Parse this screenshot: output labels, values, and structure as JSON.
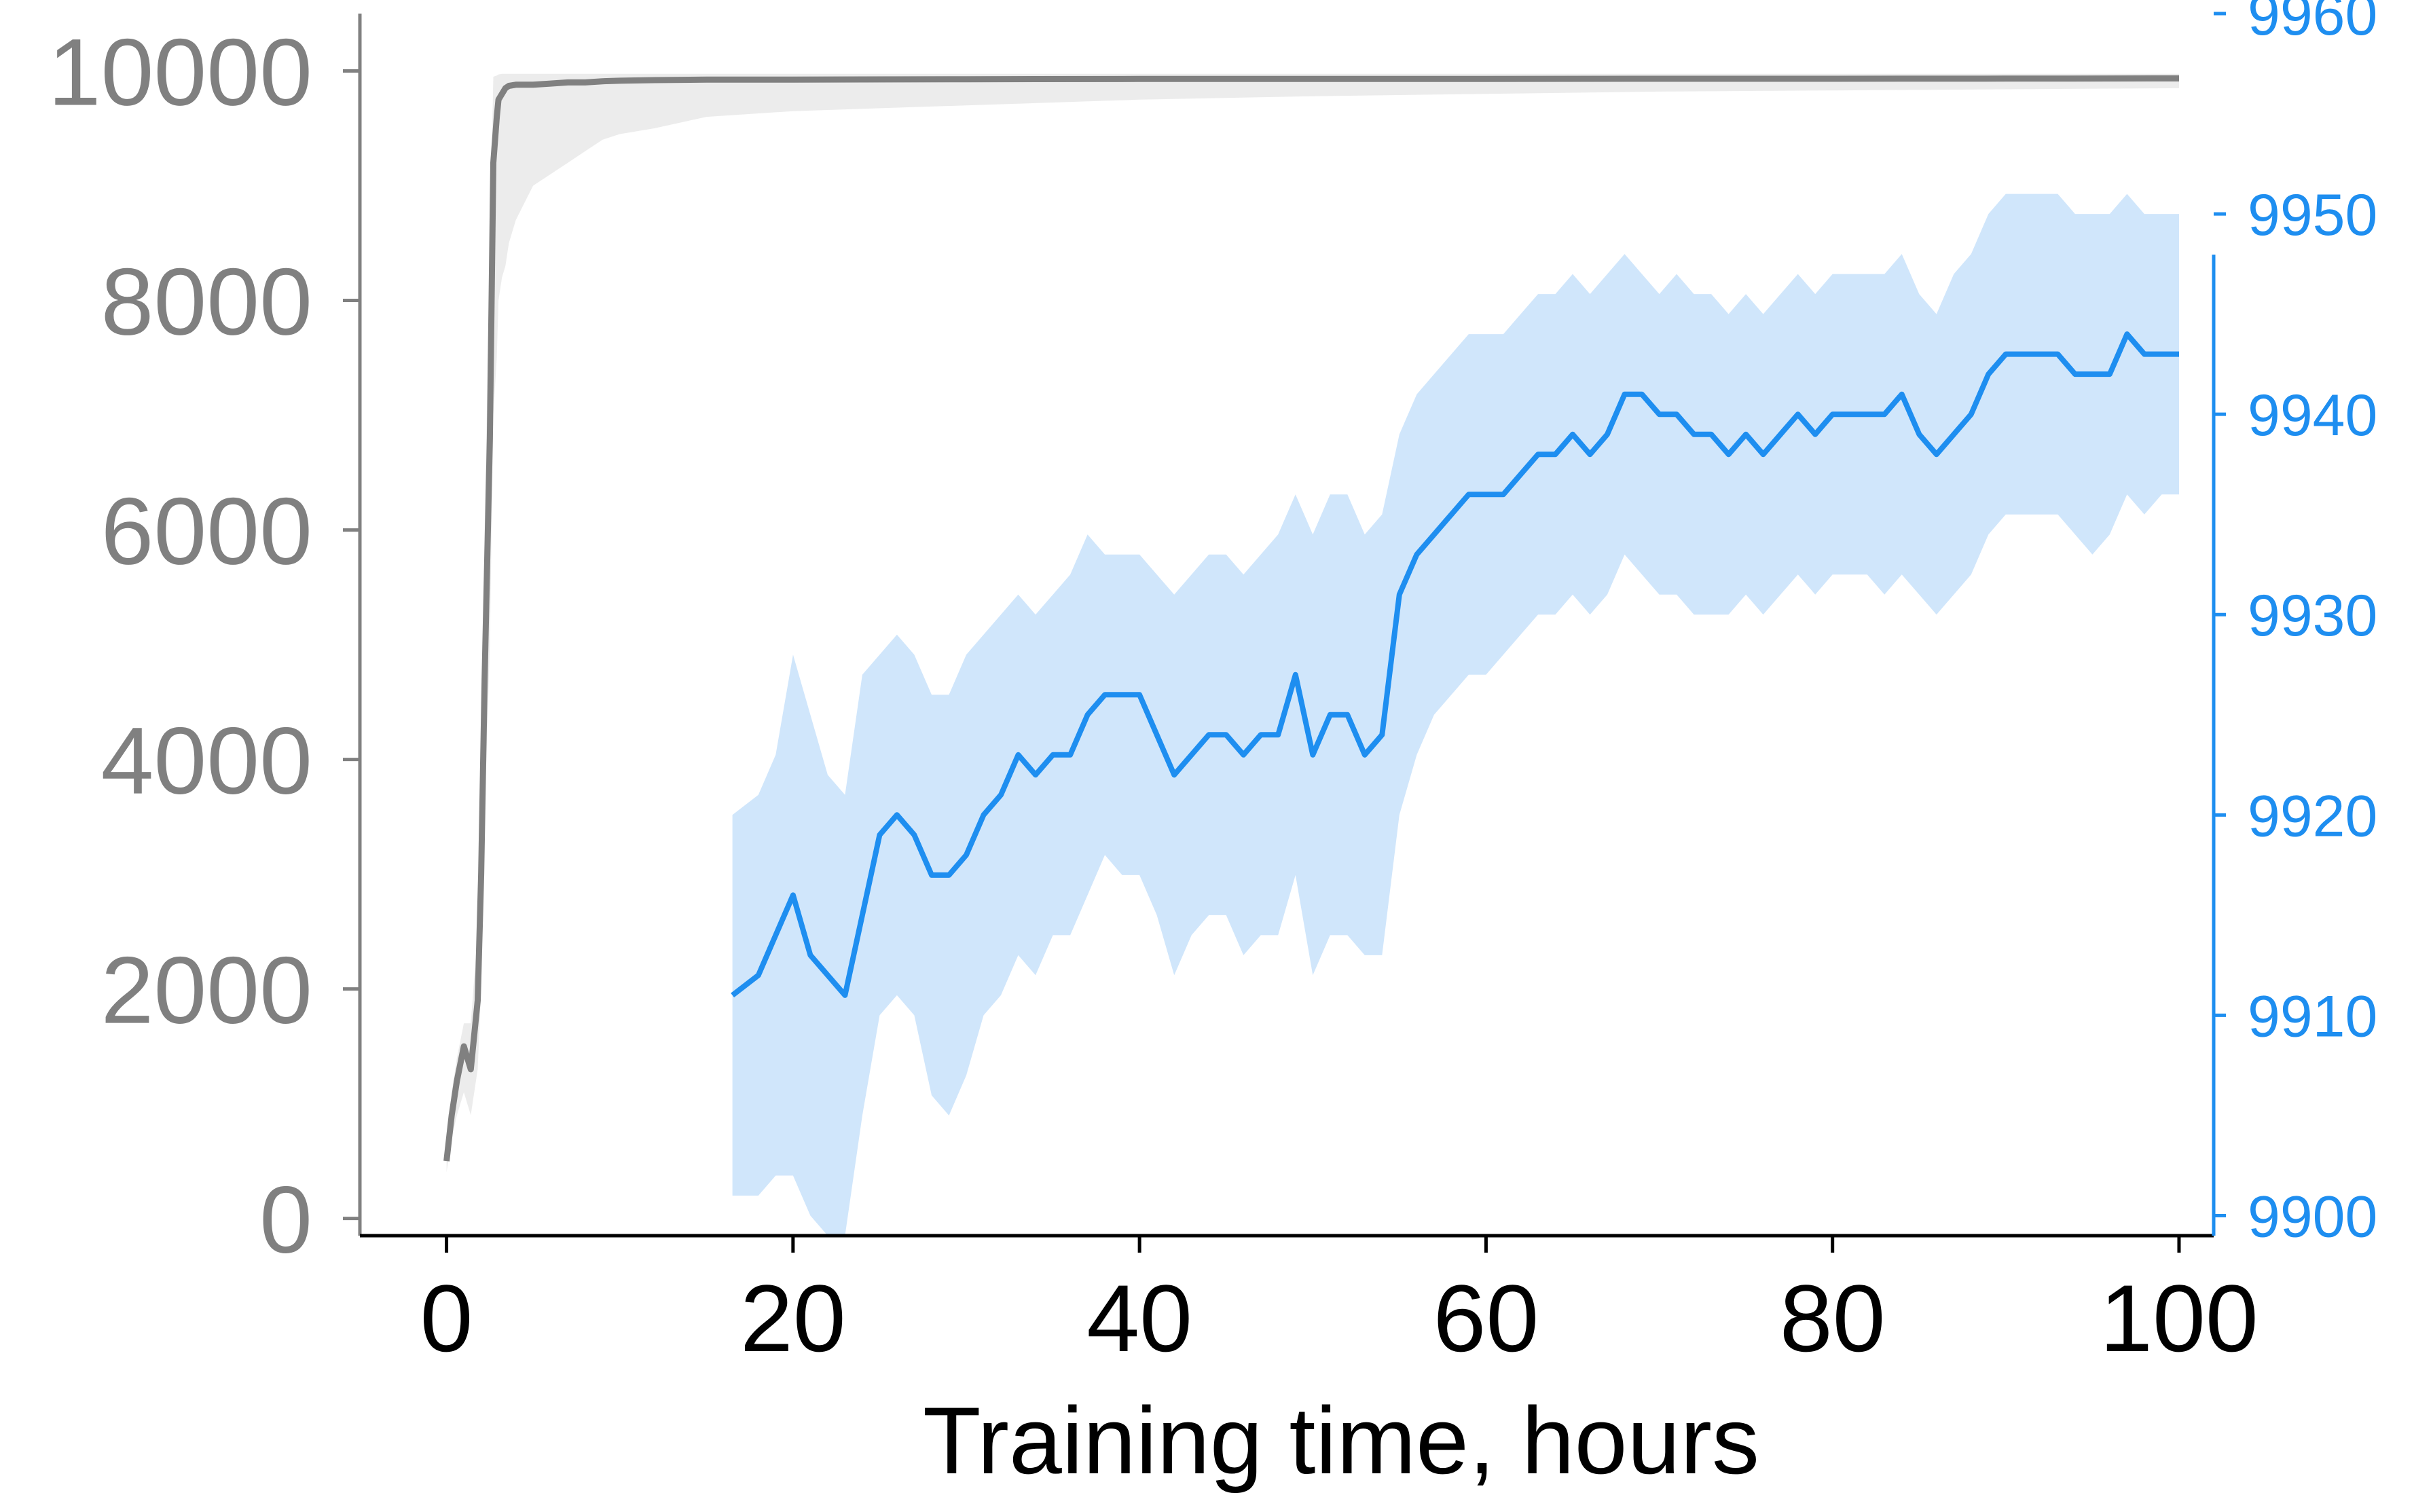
{
  "chart_data": {
    "type": "line",
    "xlabel": "Training time, hours",
    "xlim": [
      -5,
      102
    ],
    "x_ticks": [
      "0",
      "20",
      "40",
      "60",
      "80",
      "100"
    ],
    "grid": false,
    "legend": "none",
    "left_axis": {
      "color": "#808080",
      "ylim": [
        -150,
        10500
      ],
      "ticks": [
        "0",
        "2000",
        "4000",
        "6000",
        "8000",
        "10000"
      ]
    },
    "right_axis": {
      "color": "#1e8ef0",
      "ylim": [
        9899,
        9960
      ],
      "ticks": [
        "9900",
        "9910",
        "9920",
        "9930",
        "9940",
        "9950",
        "9960"
      ]
    },
    "series": [
      {
        "axis": "left",
        "color": "#808080",
        "x": [
          0,
          0.3,
          0.6,
          1.0,
          1.4,
          1.8,
          2.0,
          2.2,
          2.5,
          2.7,
          2.9,
          3.0,
          3.2,
          3.4,
          3.6,
          4.0,
          5,
          6,
          7,
          8,
          9,
          10,
          12,
          15,
          20,
          30,
          40,
          50,
          60,
          70,
          80,
          90,
          100
        ],
        "values": [
          500,
          900,
          1200,
          1500,
          1300,
          1900,
          3000,
          4700,
          6800,
          9200,
          9600,
          9750,
          9800,
          9850,
          9870,
          9880,
          9880,
          9890,
          9900,
          9900,
          9910,
          9915,
          9920,
          9925,
          9925,
          9928,
          9930,
          9930,
          9930,
          9932,
          9932,
          9933,
          9935
        ],
        "band_lower": [
          400,
          700,
          900,
          1100,
          900,
          1300,
          2000,
          3500,
          5000,
          7000,
          7500,
          8000,
          8200,
          8300,
          8500,
          8700,
          9000,
          9100,
          9200,
          9300,
          9400,
          9450,
          9500,
          9600,
          9650,
          9700,
          9750,
          9780,
          9800,
          9820,
          9830,
          9840,
          9850
        ],
        "band_upper": [
          600,
          1100,
          1400,
          1700,
          1700,
          2500,
          4000,
          6000,
          8500,
          9950,
          9960,
          9970,
          9975,
          9975,
          9975,
          9975,
          9975,
          9975,
          9975,
          9975,
          9975,
          9975,
          9975,
          9975,
          9975,
          9975,
          9975,
          9975,
          9975,
          9975,
          9975,
          9975,
          9975
        ]
      },
      {
        "axis": "right",
        "color": "#1e8ef0",
        "band_color": "#d0e6fb",
        "x": [
          16.5,
          18,
          19,
          20,
          21,
          22,
          23,
          24,
          25,
          26,
          27,
          28,
          29,
          30,
          31,
          32,
          33,
          34,
          35,
          36,
          37,
          38,
          39,
          40,
          41,
          42,
          43,
          44,
          45,
          46,
          47,
          48,
          49,
          50,
          51,
          52,
          53,
          54,
          55,
          56,
          57,
          58,
          59,
          60,
          61,
          62,
          63,
          64,
          65,
          66,
          67,
          68,
          69,
          70,
          71,
          72,
          73,
          74,
          75,
          76,
          77,
          78,
          79,
          80,
          81,
          82,
          83,
          84,
          85,
          86,
          87,
          88,
          89,
          90,
          91,
          92,
          93,
          94,
          95,
          96,
          97,
          98,
          99,
          100
        ],
        "values": [
          9911,
          9912,
          9914,
          9916,
          9913,
          9912,
          9911,
          9915,
          9919,
          9920,
          9919,
          9917,
          9917,
          9918,
          9920,
          9921,
          9923,
          9922,
          9923,
          9923,
          9925,
          9926,
          9926,
          9926,
          9924,
          9922,
          9923,
          9924,
          9924,
          9923,
          9924,
          9924,
          9927,
          9923,
          9925,
          9925,
          9923,
          9924,
          9931,
          9933,
          9934,
          9935,
          9936,
          9936,
          9936,
          9937,
          9938,
          9938,
          9939,
          9938,
          9939,
          9941,
          9941,
          9940,
          9940,
          9939,
          9939,
          9938,
          9939,
          9938,
          9939,
          9940,
          9939,
          9940,
          9940,
          9940,
          9940,
          9941,
          9939,
          9938,
          9939,
          9940,
          9942,
          9943,
          9943,
          9943,
          9943,
          9942,
          9942,
          9942,
          9944,
          9943,
          9943,
          9943
        ],
        "band_lower": [
          9901,
          9901,
          9902,
          9902,
          9900,
          9899,
          9899,
          9905,
          9910,
          9911,
          9910,
          9906,
          9905,
          9907,
          9910,
          9911,
          9913,
          9912,
          9914,
          9914,
          9916,
          9918,
          9917,
          9917,
          9915,
          9912,
          9914,
          9915,
          9915,
          9913,
          9914,
          9914,
          9917,
          9912,
          9914,
          9914,
          9913,
          9913,
          9920,
          9923,
          9925,
          9926,
          9927,
          9927,
          9928,
          9929,
          9930,
          9930,
          9931,
          9930,
          9931,
          9933,
          9932,
          9931,
          9931,
          9930,
          9930,
          9930,
          9931,
          9930,
          9931,
          9932,
          9931,
          9932,
          9932,
          9932,
          9931,
          9932,
          9931,
          9930,
          9931,
          9932,
          9934,
          9935,
          9935,
          9935,
          9935,
          9934,
          9933,
          9934,
          9936,
          9935,
          9936,
          9936
        ],
        "band_upper": [
          9920,
          9921,
          9923,
          9928,
          9925,
          9922,
          9921,
          9927,
          9928,
          9929,
          9928,
          9926,
          9926,
          9928,
          9929,
          9930,
          9931,
          9930,
          9931,
          9932,
          9934,
          9933,
          9933,
          9933,
          9932,
          9931,
          9932,
          9933,
          9933,
          9932,
          9933,
          9934,
          9936,
          9934,
          9936,
          9936,
          9934,
          9935,
          9939,
          9941,
          9942,
          9943,
          9944,
          9944,
          9944,
          9945,
          9946,
          9946,
          9947,
          9946,
          9947,
          9948,
          9947,
          9946,
          9947,
          9946,
          9946,
          9945,
          9946,
          9945,
          9946,
          9947,
          9946,
          9947,
          9947,
          9947,
          9947,
          9948,
          9946,
          9945,
          9947,
          9948,
          9950,
          9951,
          9951,
          9951,
          9951,
          9950,
          9950,
          9950,
          9951,
          9950,
          9950,
          9950
        ]
      }
    ]
  }
}
